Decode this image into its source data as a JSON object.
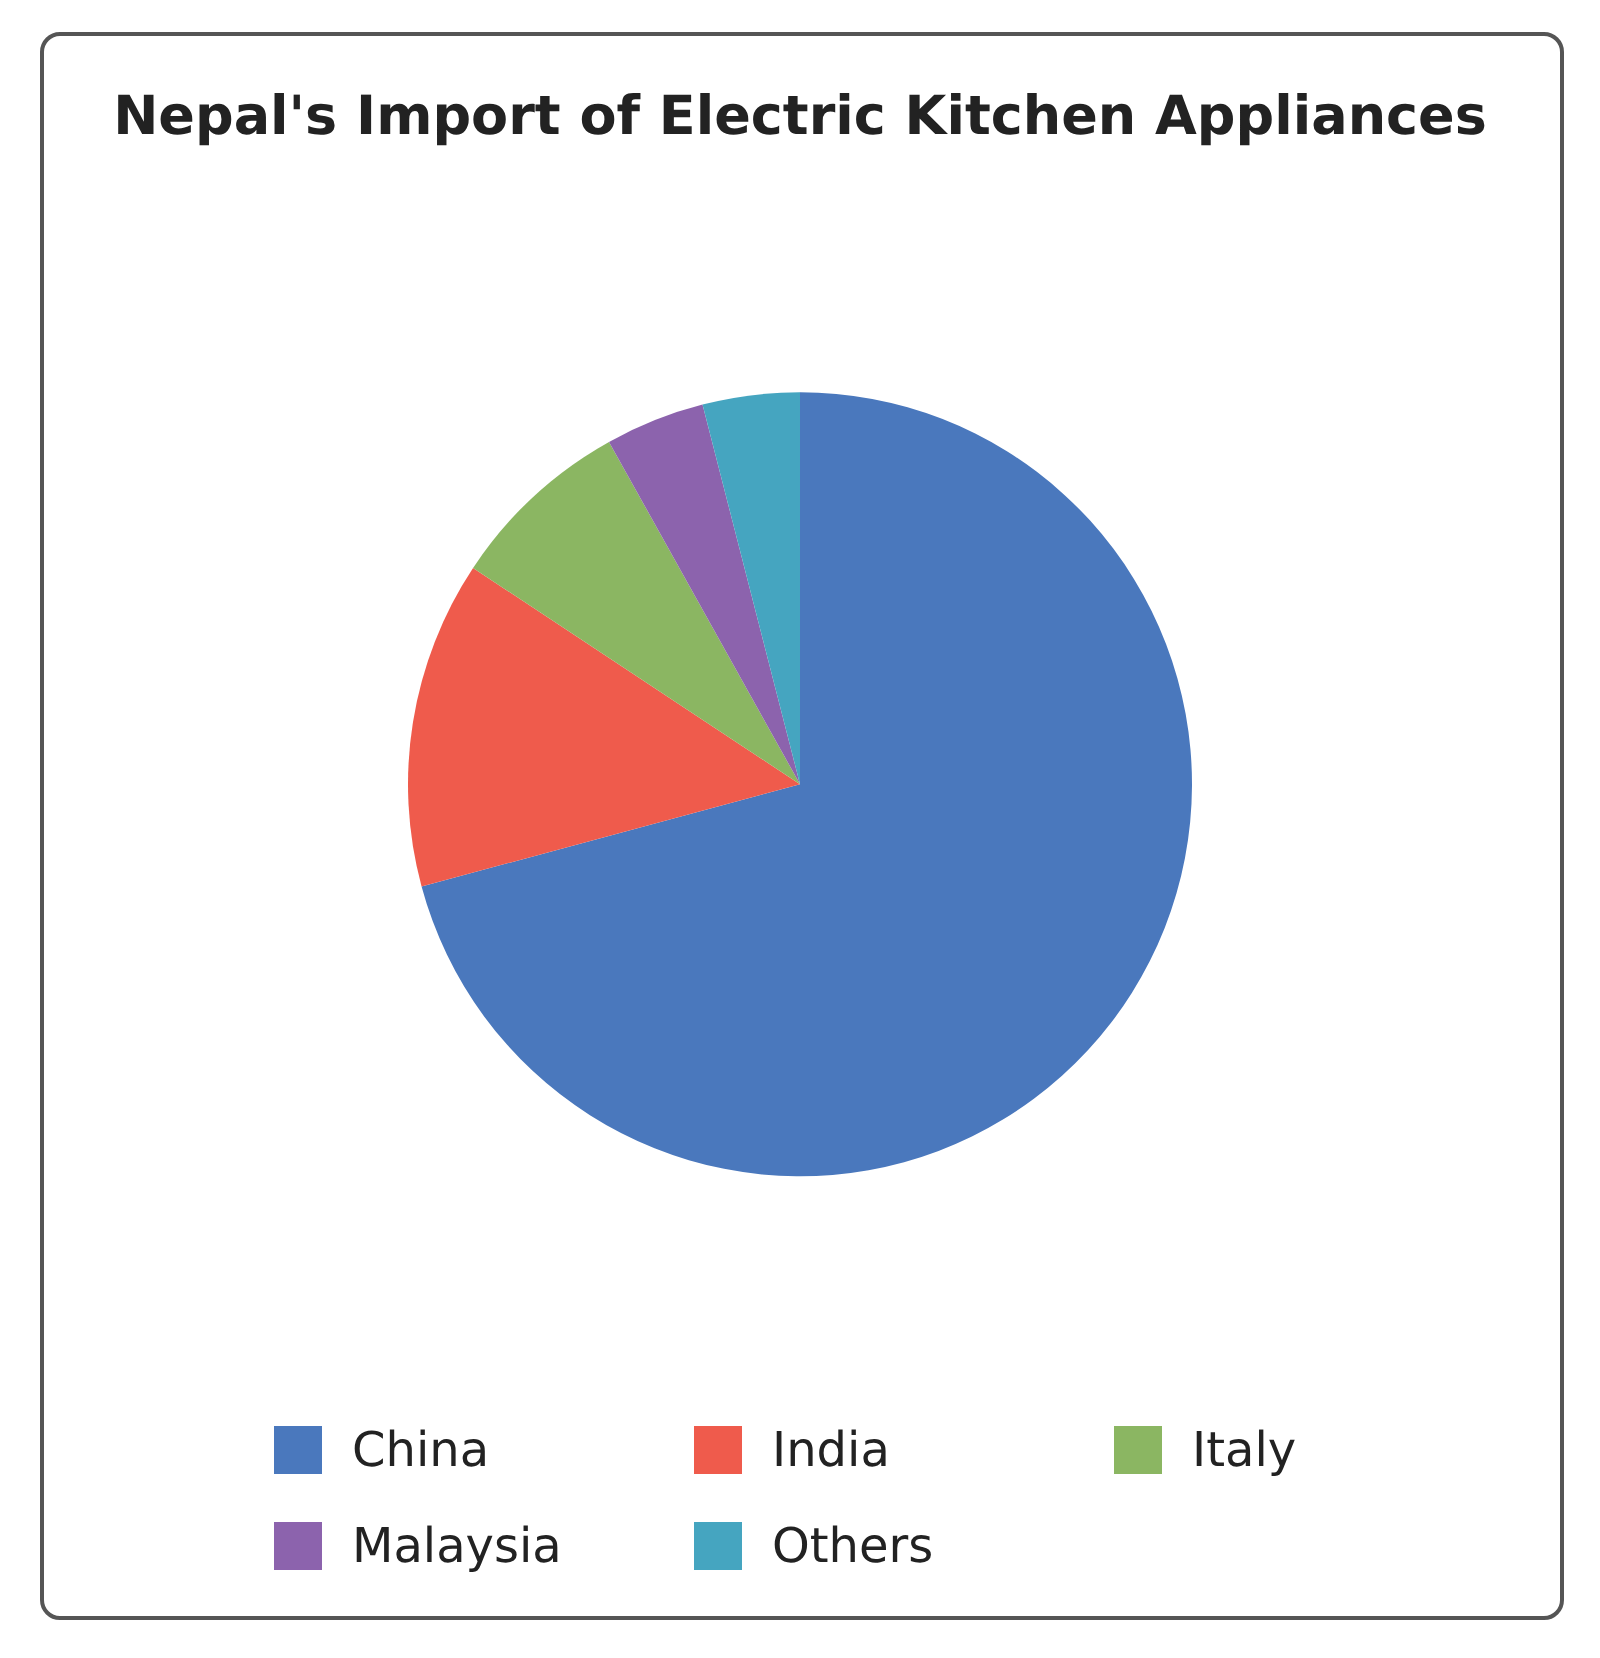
{
  "chart_data": {
    "type": "pie",
    "title": "Nepal's Import of Electric Kitchen Appliances",
    "categories": [
      "China",
      "India",
      "Italy",
      "Malaysia",
      "Others"
    ],
    "values": [
      70.8,
      13.5,
      7.6,
      4.1,
      4.0
    ],
    "colors": [
      "#4a78bd",
      "#ef5b4c",
      "#8bb662",
      "#8c63ad",
      "#45a5c0"
    ],
    "legend": "bottom"
  }
}
